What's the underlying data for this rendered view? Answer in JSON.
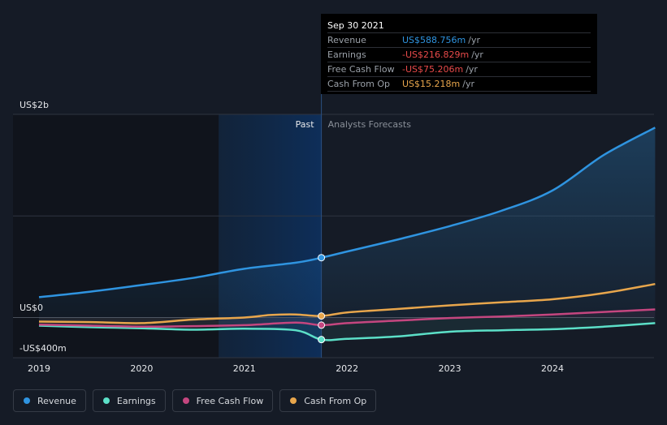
{
  "tooltip": {
    "date": "Sep 30 2021",
    "rows": [
      {
        "label": "Revenue",
        "value": "US$588.756m",
        "unit": "/yr",
        "color": "#2f94e0"
      },
      {
        "label": "Earnings",
        "value": "-US$216.829m",
        "unit": "/yr",
        "color": "#e84a4a"
      },
      {
        "label": "Free Cash Flow",
        "value": "-US$75.206m",
        "unit": "/yr",
        "color": "#e84a4a"
      },
      {
        "label": "Cash From Op",
        "value": "US$15.218m",
        "unit": "/yr",
        "color": "#e8a64c"
      }
    ]
  },
  "chart_data": {
    "type": "line",
    "past_label": "Past",
    "forecast_label": "Analysts Forecasts",
    "y_ticks": [
      {
        "value": 2000,
        "label": "US$2b"
      },
      {
        "value": 0,
        "label": "US$0"
      },
      {
        "value": -400,
        "label": "-US$400m"
      }
    ],
    "x_ticks": [
      {
        "value": 2019.0,
        "label": "2019"
      },
      {
        "value": 2020.0,
        "label": "2020"
      },
      {
        "value": 2021.0,
        "label": "2021"
      },
      {
        "value": 2022.0,
        "label": "2022"
      },
      {
        "value": 2023.0,
        "label": "2023"
      },
      {
        "value": 2024.0,
        "label": "2024"
      }
    ],
    "xlim": [
      2018.75,
      2025.0
    ],
    "ylim": [
      -400,
      2000
    ],
    "divider_x": 2021.75,
    "highlight_start": 2020.75,
    "series": [
      {
        "name": "Revenue",
        "color": "#2f94e0",
        "x": [
          2019.0,
          2019.5,
          2020.0,
          2020.5,
          2021.0,
          2021.5,
          2021.75,
          2022.0,
          2022.5,
          2023.0,
          2023.5,
          2024.0,
          2024.5,
          2025.0
        ],
        "y": [
          200,
          255,
          320,
          390,
          480,
          540,
          589,
          650,
          770,
          900,
          1050,
          1250,
          1600,
          1870
        ]
      },
      {
        "name": "Earnings",
        "color": "#5ce0c8",
        "x": [
          2019.0,
          2019.5,
          2020.0,
          2020.5,
          2021.0,
          2021.5,
          2021.75,
          2022.0,
          2022.5,
          2023.0,
          2023.5,
          2024.0,
          2024.5,
          2025.0
        ],
        "y": [
          -80,
          -95,
          -105,
          -120,
          -110,
          -125,
          -217,
          -210,
          -185,
          -140,
          -125,
          -115,
          -90,
          -55
        ]
      },
      {
        "name": "Free Cash Flow",
        "color": "#c4467f",
        "x": [
          2019.0,
          2019.5,
          2020.0,
          2020.5,
          2021.0,
          2021.5,
          2021.75,
          2022.0,
          2022.5,
          2023.0,
          2023.5,
          2024.0,
          2024.5,
          2025.0
        ],
        "y": [
          -70,
          -80,
          -90,
          -85,
          -75,
          -50,
          -75,
          -55,
          -30,
          -5,
          10,
          30,
          55,
          80
        ]
      },
      {
        "name": "Cash From Op",
        "color": "#e8a64c",
        "x": [
          2019.0,
          2019.5,
          2020.0,
          2020.5,
          2021.0,
          2021.25,
          2021.5,
          2021.75,
          2022.0,
          2022.5,
          2023.0,
          2023.5,
          2024.0,
          2024.5,
          2025.0
        ],
        "y": [
          -40,
          -45,
          -55,
          -20,
          0,
          25,
          30,
          15,
          50,
          85,
          120,
          150,
          180,
          240,
          330
        ]
      }
    ]
  },
  "legend": [
    {
      "label": "Revenue",
      "color": "#2f94e0"
    },
    {
      "label": "Earnings",
      "color": "#5ce0c8"
    },
    {
      "label": "Free Cash Flow",
      "color": "#c4467f"
    },
    {
      "label": "Cash From Op",
      "color": "#e8a64c"
    }
  ]
}
